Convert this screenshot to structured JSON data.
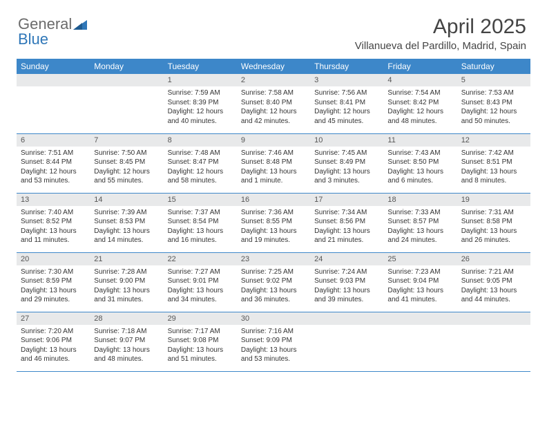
{
  "brand": {
    "part1": "General",
    "part2": "Blue"
  },
  "header": {
    "title": "April 2025",
    "location": "Villanueva del Pardillo, Madrid, Spain"
  },
  "colors": {
    "header_bg": "#3d87c9",
    "header_fg": "#ffffff",
    "daynum_bg": "#e8e9ea",
    "row_border": "#3d87c9",
    "brand_gray": "#6b6b6b",
    "brand_blue": "#2f77b8"
  },
  "weekdays": [
    "Sunday",
    "Monday",
    "Tuesday",
    "Wednesday",
    "Thursday",
    "Friday",
    "Saturday"
  ],
  "weeks": [
    [
      {
        "n": "",
        "sr": "",
        "ss": "",
        "dl": ""
      },
      {
        "n": "",
        "sr": "",
        "ss": "",
        "dl": ""
      },
      {
        "n": "1",
        "sr": "Sunrise: 7:59 AM",
        "ss": "Sunset: 8:39 PM",
        "dl": "Daylight: 12 hours and 40 minutes."
      },
      {
        "n": "2",
        "sr": "Sunrise: 7:58 AM",
        "ss": "Sunset: 8:40 PM",
        "dl": "Daylight: 12 hours and 42 minutes."
      },
      {
        "n": "3",
        "sr": "Sunrise: 7:56 AM",
        "ss": "Sunset: 8:41 PM",
        "dl": "Daylight: 12 hours and 45 minutes."
      },
      {
        "n": "4",
        "sr": "Sunrise: 7:54 AM",
        "ss": "Sunset: 8:42 PM",
        "dl": "Daylight: 12 hours and 48 minutes."
      },
      {
        "n": "5",
        "sr": "Sunrise: 7:53 AM",
        "ss": "Sunset: 8:43 PM",
        "dl": "Daylight: 12 hours and 50 minutes."
      }
    ],
    [
      {
        "n": "6",
        "sr": "Sunrise: 7:51 AM",
        "ss": "Sunset: 8:44 PM",
        "dl": "Daylight: 12 hours and 53 minutes."
      },
      {
        "n": "7",
        "sr": "Sunrise: 7:50 AM",
        "ss": "Sunset: 8:45 PM",
        "dl": "Daylight: 12 hours and 55 minutes."
      },
      {
        "n": "8",
        "sr": "Sunrise: 7:48 AM",
        "ss": "Sunset: 8:47 PM",
        "dl": "Daylight: 12 hours and 58 minutes."
      },
      {
        "n": "9",
        "sr": "Sunrise: 7:46 AM",
        "ss": "Sunset: 8:48 PM",
        "dl": "Daylight: 13 hours and 1 minute."
      },
      {
        "n": "10",
        "sr": "Sunrise: 7:45 AM",
        "ss": "Sunset: 8:49 PM",
        "dl": "Daylight: 13 hours and 3 minutes."
      },
      {
        "n": "11",
        "sr": "Sunrise: 7:43 AM",
        "ss": "Sunset: 8:50 PM",
        "dl": "Daylight: 13 hours and 6 minutes."
      },
      {
        "n": "12",
        "sr": "Sunrise: 7:42 AM",
        "ss": "Sunset: 8:51 PM",
        "dl": "Daylight: 13 hours and 8 minutes."
      }
    ],
    [
      {
        "n": "13",
        "sr": "Sunrise: 7:40 AM",
        "ss": "Sunset: 8:52 PM",
        "dl": "Daylight: 13 hours and 11 minutes."
      },
      {
        "n": "14",
        "sr": "Sunrise: 7:39 AM",
        "ss": "Sunset: 8:53 PM",
        "dl": "Daylight: 13 hours and 14 minutes."
      },
      {
        "n": "15",
        "sr": "Sunrise: 7:37 AM",
        "ss": "Sunset: 8:54 PM",
        "dl": "Daylight: 13 hours and 16 minutes."
      },
      {
        "n": "16",
        "sr": "Sunrise: 7:36 AM",
        "ss": "Sunset: 8:55 PM",
        "dl": "Daylight: 13 hours and 19 minutes."
      },
      {
        "n": "17",
        "sr": "Sunrise: 7:34 AM",
        "ss": "Sunset: 8:56 PM",
        "dl": "Daylight: 13 hours and 21 minutes."
      },
      {
        "n": "18",
        "sr": "Sunrise: 7:33 AM",
        "ss": "Sunset: 8:57 PM",
        "dl": "Daylight: 13 hours and 24 minutes."
      },
      {
        "n": "19",
        "sr": "Sunrise: 7:31 AM",
        "ss": "Sunset: 8:58 PM",
        "dl": "Daylight: 13 hours and 26 minutes."
      }
    ],
    [
      {
        "n": "20",
        "sr": "Sunrise: 7:30 AM",
        "ss": "Sunset: 8:59 PM",
        "dl": "Daylight: 13 hours and 29 minutes."
      },
      {
        "n": "21",
        "sr": "Sunrise: 7:28 AM",
        "ss": "Sunset: 9:00 PM",
        "dl": "Daylight: 13 hours and 31 minutes."
      },
      {
        "n": "22",
        "sr": "Sunrise: 7:27 AM",
        "ss": "Sunset: 9:01 PM",
        "dl": "Daylight: 13 hours and 34 minutes."
      },
      {
        "n": "23",
        "sr": "Sunrise: 7:25 AM",
        "ss": "Sunset: 9:02 PM",
        "dl": "Daylight: 13 hours and 36 minutes."
      },
      {
        "n": "24",
        "sr": "Sunrise: 7:24 AM",
        "ss": "Sunset: 9:03 PM",
        "dl": "Daylight: 13 hours and 39 minutes."
      },
      {
        "n": "25",
        "sr": "Sunrise: 7:23 AM",
        "ss": "Sunset: 9:04 PM",
        "dl": "Daylight: 13 hours and 41 minutes."
      },
      {
        "n": "26",
        "sr": "Sunrise: 7:21 AM",
        "ss": "Sunset: 9:05 PM",
        "dl": "Daylight: 13 hours and 44 minutes."
      }
    ],
    [
      {
        "n": "27",
        "sr": "Sunrise: 7:20 AM",
        "ss": "Sunset: 9:06 PM",
        "dl": "Daylight: 13 hours and 46 minutes."
      },
      {
        "n": "28",
        "sr": "Sunrise: 7:18 AM",
        "ss": "Sunset: 9:07 PM",
        "dl": "Daylight: 13 hours and 48 minutes."
      },
      {
        "n": "29",
        "sr": "Sunrise: 7:17 AM",
        "ss": "Sunset: 9:08 PM",
        "dl": "Daylight: 13 hours and 51 minutes."
      },
      {
        "n": "30",
        "sr": "Sunrise: 7:16 AM",
        "ss": "Sunset: 9:09 PM",
        "dl": "Daylight: 13 hours and 53 minutes."
      },
      {
        "n": "",
        "sr": "",
        "ss": "",
        "dl": ""
      },
      {
        "n": "",
        "sr": "",
        "ss": "",
        "dl": ""
      },
      {
        "n": "",
        "sr": "",
        "ss": "",
        "dl": ""
      }
    ]
  ]
}
